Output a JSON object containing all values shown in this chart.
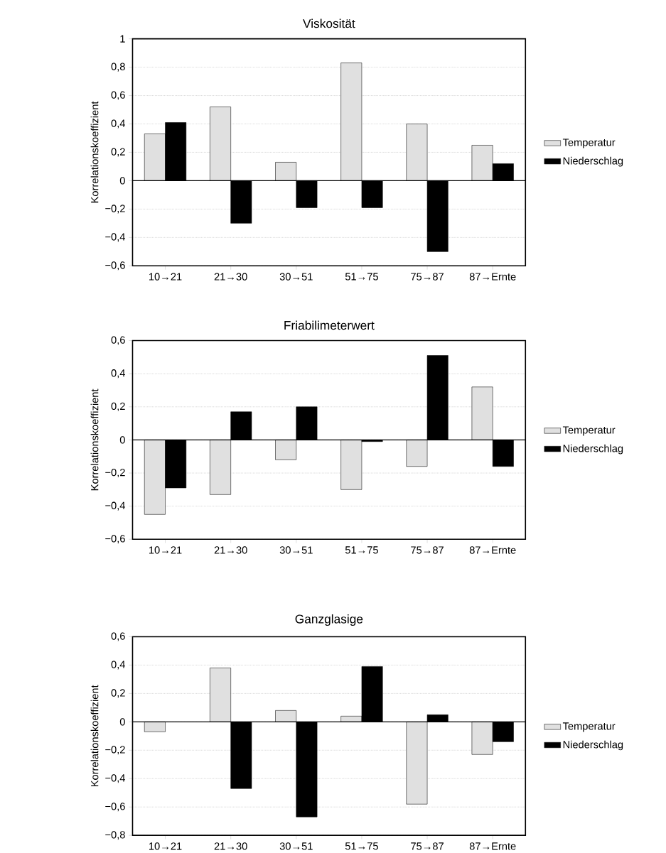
{
  "chart_data": [
    {
      "type": "bar",
      "title": "Viskosität",
      "ylabel": "Korrelationskoeffizient",
      "categories": [
        "10→21",
        "21→30",
        "30→51",
        "51→75",
        "75→87",
        "87→Ernte"
      ],
      "series": [
        {
          "name": "Temperatur",
          "color": "#e0e0e0",
          "values": [
            0.33,
            0.52,
            0.13,
            0.83,
            0.4,
            0.25
          ]
        },
        {
          "name": "Niederschlag",
          "color": "#000000",
          "values": [
            0.41,
            -0.3,
            -0.19,
            -0.19,
            -0.5,
            0.12
          ]
        }
      ],
      "ylim": [
        -0.6,
        1
      ],
      "yticks": [
        {
          "value": -0.6,
          "label": "−0,6"
        },
        {
          "value": -0.4,
          "label": "−0,4"
        },
        {
          "value": -0.2,
          "label": "−0,2"
        },
        0,
        {
          "value": 0.2,
          "label": "0,2"
        },
        {
          "value": 0.4,
          "label": "0,4"
        },
        {
          "value": 0.6,
          "label": "0,6"
        },
        {
          "value": 0.8,
          "label": "0,8"
        },
        1
      ],
      "grid": "y",
      "legend": "right"
    },
    {
      "type": "bar",
      "title": "Friabilimeterwert",
      "ylabel": "Korrelationskoeffizient",
      "categories": [
        "10→21",
        "21→30",
        "30→51",
        "51→75",
        "75→87",
        "87→Ernte"
      ],
      "series": [
        {
          "name": "Temperatur",
          "color": "#e0e0e0",
          "values": [
            -0.45,
            -0.33,
            -0.12,
            -0.3,
            -0.16,
            0.32
          ]
        },
        {
          "name": "Niederschlag",
          "color": "#000000",
          "values": [
            -0.29,
            0.17,
            0.2,
            -0.01,
            0.51,
            -0.16
          ]
        }
      ],
      "ylim": [
        -0.6,
        0.6
      ],
      "yticks": [
        {
          "value": -0.6,
          "label": "−0,6"
        },
        {
          "value": -0.4,
          "label": "−0,4"
        },
        {
          "value": -0.2,
          "label": "−0,2"
        },
        0,
        {
          "value": 0.2,
          "label": "0,2"
        },
        {
          "value": 0.4,
          "label": "0,4"
        },
        {
          "value": 0.6,
          "label": "0,6"
        }
      ],
      "grid": "y",
      "legend": "right"
    },
    {
      "type": "bar",
      "title": "Ganzglasige",
      "ylabel": "Korrelationskoeffizient",
      "categories": [
        "10→21",
        "21→30",
        "30→51",
        "51→75",
        "75→87",
        "87→Ernte"
      ],
      "series": [
        {
          "name": "Temperatur",
          "color": "#e0e0e0",
          "values": [
            -0.07,
            0.38,
            0.08,
            0.04,
            -0.58,
            -0.23
          ]
        },
        {
          "name": "Niederschlag",
          "color": "#000000",
          "values": [
            null,
            -0.47,
            -0.67,
            0.39,
            0.05,
            -0.14
          ]
        }
      ],
      "ylim": [
        -0.8,
        0.6
      ],
      "yticks": [
        {
          "value": -0.8,
          "label": "−0,8"
        },
        {
          "value": -0.6,
          "label": "−0,6"
        },
        {
          "value": -0.4,
          "label": "−0,4"
        },
        {
          "value": -0.2,
          "label": "−0,2"
        },
        0,
        {
          "value": 0.2,
          "label": "0,2"
        },
        {
          "value": 0.4,
          "label": "0,4"
        },
        {
          "value": 0.6,
          "label": "0,6"
        }
      ],
      "grid": "y",
      "legend": "right"
    }
  ]
}
